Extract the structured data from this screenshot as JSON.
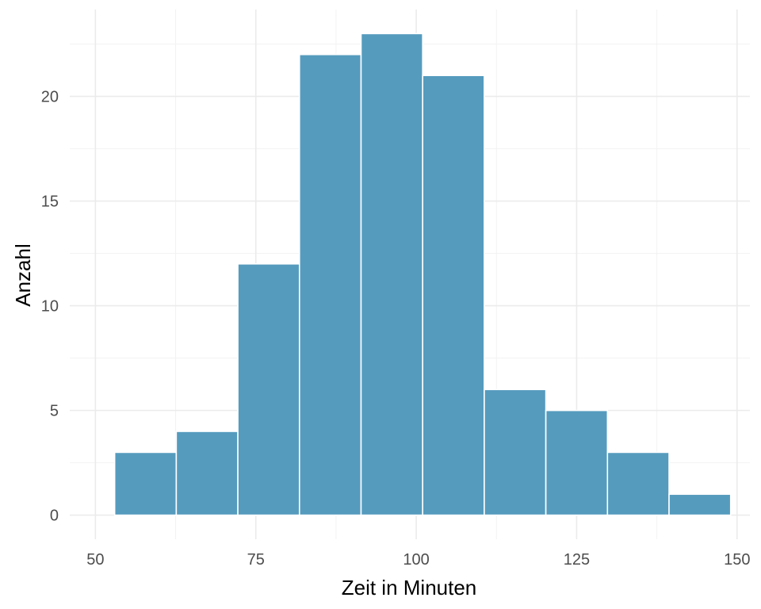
{
  "chart_data": {
    "type": "bar",
    "subtype": "histogram",
    "xlabel": "Zeit in Minuten",
    "ylabel": "Anzahl",
    "xlim": [
      50,
      150
    ],
    "ylim": [
      0,
      23
    ],
    "x_ticks": [
      50,
      75,
      100,
      125,
      150
    ],
    "y_ticks": [
      0,
      5,
      10,
      15,
      20
    ],
    "grid": true,
    "bar_color": "#559bbe",
    "bins": [
      {
        "start": 53,
        "end": 62.6,
        "count": 3
      },
      {
        "start": 62.6,
        "end": 72.2,
        "count": 4
      },
      {
        "start": 72.2,
        "end": 81.8,
        "count": 12
      },
      {
        "start": 81.8,
        "end": 91.4,
        "count": 22
      },
      {
        "start": 91.4,
        "end": 101.0,
        "count": 23
      },
      {
        "start": 101.0,
        "end": 110.6,
        "count": 21
      },
      {
        "start": 110.6,
        "end": 120.2,
        "count": 6
      },
      {
        "start": 120.2,
        "end": 129.8,
        "count": 5
      },
      {
        "start": 129.8,
        "end": 139.4,
        "count": 3
      },
      {
        "start": 139.4,
        "end": 149,
        "count": 1
      }
    ]
  }
}
